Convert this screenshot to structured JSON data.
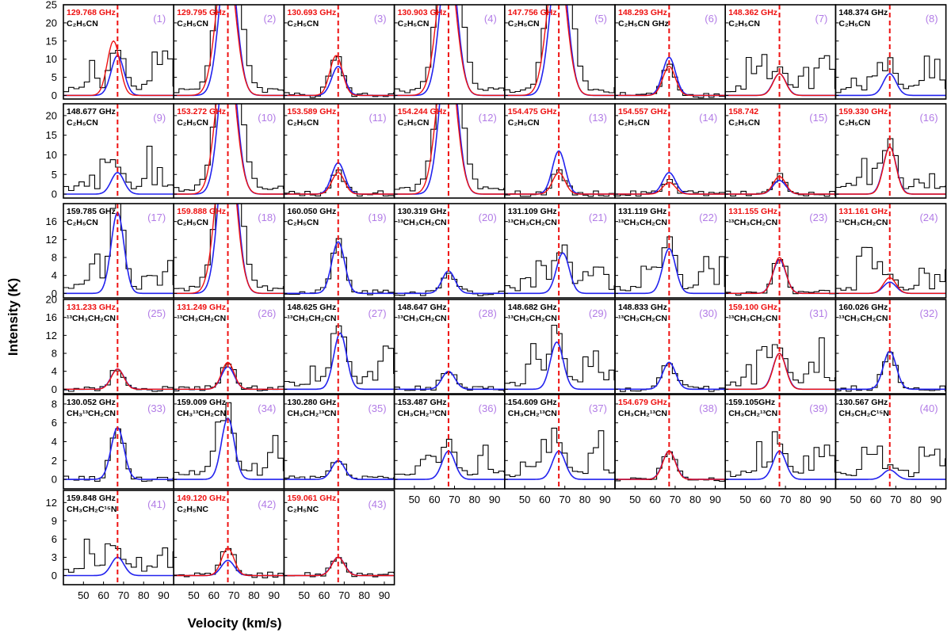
{
  "figure": {
    "xlabel": "Velocity (km/s)",
    "ylabel": "Intensity (K)",
    "xlim": [
      40,
      95
    ],
    "xticks": [
      50,
      60,
      70,
      80,
      90
    ],
    "colors": {
      "observed": "#000000",
      "model": "#2222ee",
      "fit": "#ee1111",
      "vlsr_line": "#ee1111",
      "panel_number": "#b27ce6",
      "highlight_freq": "#ee1111"
    }
  },
  "chart_data": [
    {
      "panel": "(1)",
      "freq": "129.768 GHz",
      "freq_red": true,
      "species": "C₂H₅CN",
      "row": 0,
      "col": 0,
      "obs": "blend",
      "peak_model": 11,
      "peak_fit": 15,
      "center": 67,
      "fit_center": 65
    },
    {
      "panel": "(2)",
      "freq": "129.795 GHz",
      "freq_red": true,
      "species": "C₂H₅CN",
      "row": 0,
      "col": 1,
      "obs": "broad_high",
      "peak_model": 40,
      "peak_fit": 40,
      "center": 67,
      "fit_center": 66
    },
    {
      "panel": "(3)",
      "freq": "130.693 GHz",
      "freq_red": true,
      "species": "C₂H₅CN",
      "row": 0,
      "col": 2,
      "obs": "moderate",
      "peak_model": 8,
      "peak_fit": 11,
      "center": 67,
      "fit_center": 66
    },
    {
      "panel": "(4)",
      "freq": "130.903 GHz",
      "freq_red": true,
      "species": "C₂H₅CN",
      "row": 0,
      "col": 3,
      "obs": "broad_high",
      "peak_model": 40,
      "peak_fit": 40,
      "center": 67,
      "fit_center": 66
    },
    {
      "panel": "(5)",
      "freq": "147.756 GHz",
      "freq_red": true,
      "species": "C₂H₅CN",
      "row": 0,
      "col": 4,
      "obs": "broad_high",
      "peak_model": 40,
      "peak_fit": 40,
      "center": 67,
      "fit_center": 66
    },
    {
      "panel": "(6)",
      "freq": "148.293 GHz",
      "freq_red": true,
      "species": "C₂H₅CN GHz",
      "row": 0,
      "col": 5,
      "obs": "moderate",
      "peak_model": 10.5,
      "peak_fit": 8,
      "center": 67,
      "fit_center": 67
    },
    {
      "panel": "(7)",
      "freq": "148.362 GHz",
      "freq_red": true,
      "species": "C₂H₅CN",
      "row": 0,
      "col": 6,
      "obs": "blend",
      "peak_model": 6,
      "peak_fit": 6,
      "center": 67,
      "fit_center": 67
    },
    {
      "panel": "(8)",
      "freq": "148.374 GHz",
      "freq_red": false,
      "species": "C₂H₅CN",
      "row": 0,
      "col": 7,
      "obs": "blend",
      "peak_model": 6,
      "peak_fit": null,
      "center": 67,
      "fit_center": null
    },
    {
      "panel": "(9)",
      "freq": "148.677 GHz",
      "freq_red": false,
      "species": "C₂H₅CN",
      "row": 1,
      "col": 0,
      "obs": "blend",
      "peak_model": 5.5,
      "peak_fit": null,
      "center": 67,
      "fit_center": null
    },
    {
      "panel": "(10)",
      "freq": "153.272 GHz",
      "freq_red": true,
      "species": "C₂H₅CN",
      "row": 1,
      "col": 1,
      "obs": "broad_high",
      "peak_model": 40,
      "peak_fit": 40,
      "center": 67,
      "fit_center": 66
    },
    {
      "panel": "(11)",
      "freq": "153.589 GHz",
      "freq_red": true,
      "species": "C₂H₅CN",
      "row": 1,
      "col": 2,
      "obs": "moderate",
      "peak_model": 8,
      "peak_fit": 5.5,
      "center": 67,
      "fit_center": 67
    },
    {
      "panel": "(12)",
      "freq": "154.244 GHz",
      "freq_red": true,
      "species": "C₂H₅CN",
      "row": 1,
      "col": 3,
      "obs": "broad_high",
      "peak_model": 40,
      "peak_fit": 40,
      "center": 67,
      "fit_center": 66
    },
    {
      "panel": "(13)",
      "freq": "154.475 GHz",
      "freq_red": true,
      "species": "C₂H₅CN",
      "row": 1,
      "col": 4,
      "obs": "moderate",
      "peak_model": 11,
      "peak_fit": 5.5,
      "center": 67,
      "fit_center": 67
    },
    {
      "panel": "(14)",
      "freq": "154.557 GHz",
      "freq_red": true,
      "species": "C₂H₅CN",
      "row": 1,
      "col": 5,
      "obs": "moderate",
      "peak_model": 5.5,
      "peak_fit": 3,
      "center": 67,
      "fit_center": 67
    },
    {
      "panel": "(15)",
      "freq": "158.742",
      "freq_red": true,
      "species": "C₂H₅CN",
      "row": 1,
      "col": 6,
      "obs": "moderate",
      "peak_model": 3.5,
      "peak_fit": 4.5,
      "center": 67,
      "fit_center": 67
    },
    {
      "panel": "(16)",
      "freq": "159.330 GHz",
      "freq_red": true,
      "species": "C₂H₅CN",
      "row": 1,
      "col": 7,
      "obs": "blend",
      "peak_model": 12,
      "peak_fit": 12,
      "center": 67,
      "fit_center": 67
    },
    {
      "panel": "(17)",
      "freq": "159.785 GHz",
      "freq_red": false,
      "species": "C₂H₅CN",
      "row": 2,
      "col": 0,
      "obs": "blend",
      "peak_model": 18,
      "peak_fit": null,
      "center": 67,
      "fit_center": null
    },
    {
      "panel": "(18)",
      "freq": "159.888 GHz",
      "freq_red": true,
      "species": "C₂H₅CN",
      "row": 2,
      "col": 1,
      "obs": "broad_high",
      "peak_model": 40,
      "peak_fit": 40,
      "center": 67,
      "fit_center": 66
    },
    {
      "panel": "(19)",
      "freq": "160.050 GHz",
      "freq_red": false,
      "species": "C₂H₅CN",
      "row": 2,
      "col": 2,
      "obs": "moderate",
      "peak_model": 11.5,
      "peak_fit": null,
      "center": 67,
      "fit_center": null
    },
    {
      "panel": "(20)",
      "freq": "130.319 GHz",
      "freq_red": false,
      "species": "¹³CH₃CH₂CN",
      "row": 2,
      "col": 3,
      "obs": "moderate",
      "peak_model": 5,
      "peak_fit": null,
      "center": 67,
      "fit_center": null
    },
    {
      "panel": "(21)",
      "freq": "131.109 GHz",
      "freq_red": false,
      "species": "¹³CH₃CH₂CN",
      "row": 2,
      "col": 4,
      "obs": "blend",
      "peak_model": 9,
      "peak_fit": null,
      "center": 69,
      "fit_center": null
    },
    {
      "panel": "(22)",
      "freq": "131.119 GHz",
      "freq_red": false,
      "species": "¹³CH₃CH₂CN",
      "row": 2,
      "col": 5,
      "obs": "blend",
      "peak_model": 10,
      "peak_fit": null,
      "center": 67,
      "fit_center": null
    },
    {
      "panel": "(23)",
      "freq": "131.155 GHz",
      "freq_red": true,
      "species": "¹³CH₃CH₂CN",
      "row": 2,
      "col": 6,
      "obs": "moderate",
      "peak_model": 7.5,
      "peak_fit": 8,
      "center": 67,
      "fit_center": 67
    },
    {
      "panel": "(24)",
      "freq": "131.161  GHz",
      "freq_red": true,
      "species": "¹³CH₃CH₂CN",
      "row": 2,
      "col": 7,
      "obs": "blend",
      "peak_model": 2.5,
      "peak_fit": 3.5,
      "center": 67,
      "fit_center": 67
    },
    {
      "panel": "(25)",
      "freq": "131.233 GHz",
      "freq_red": true,
      "species": "¹³CH₃CH₂CN",
      "row": 3,
      "col": 0,
      "obs": "moderate",
      "peak_model": 4.5,
      "peak_fit": 4.5,
      "center": 67,
      "fit_center": 67
    },
    {
      "panel": "(26)",
      "freq": "131.249 GHz",
      "freq_red": true,
      "species": "¹³CH₃CH₂CN",
      "row": 3,
      "col": 1,
      "obs": "moderate",
      "peak_model": 5,
      "peak_fit": 6,
      "center": 67,
      "fit_center": 67
    },
    {
      "panel": "(27)",
      "freq": "148.625 GHz",
      "freq_red": false,
      "species": "¹³CH₃CH₂CN",
      "row": 3,
      "col": 2,
      "obs": "blend",
      "peak_model": 12.5,
      "peak_fit": null,
      "center": 68,
      "fit_center": null
    },
    {
      "panel": "(28)",
      "freq": "148.647 GHz",
      "freq_red": false,
      "species": "¹³CH₃CH₂CN",
      "row": 3,
      "col": 3,
      "obs": "moderate",
      "peak_model": 4,
      "peak_fit": null,
      "center": 67,
      "fit_center": null
    },
    {
      "panel": "(29)",
      "freq": "148.682  GHz",
      "freq_red": false,
      "species": "¹³CH₃CH₂CN",
      "row": 3,
      "col": 4,
      "obs": "blend",
      "peak_model": 10.5,
      "peak_fit": null,
      "center": 66,
      "fit_center": null
    },
    {
      "panel": "(30)",
      "freq": "148.833 GHz",
      "freq_red": false,
      "species": "¹³CH₃CH₂CN",
      "row": 3,
      "col": 5,
      "obs": "moderate",
      "peak_model": 6,
      "peak_fit": null,
      "center": 67,
      "fit_center": null
    },
    {
      "panel": "(31)",
      "freq": "159.100 GHz",
      "freq_red": true,
      "species": "¹³CH₃CH₂CN",
      "row": 3,
      "col": 6,
      "obs": "blend",
      "peak_model": 8,
      "peak_fit": 8,
      "center": 67,
      "fit_center": 67
    },
    {
      "panel": "(32)",
      "freq": "160.026 GHz",
      "freq_red": false,
      "species": "¹³CH₃CH₂CN",
      "row": 3,
      "col": 7,
      "obs": "moderate",
      "peak_model": 8.5,
      "peak_fit": null,
      "center": 67,
      "fit_center": null
    },
    {
      "panel": "(33)",
      "freq": "130.052 GHz",
      "freq_red": false,
      "species": "CH₃¹³CH₂CN",
      "row": 4,
      "col": 0,
      "obs": "moderate",
      "peak_model": 5.5,
      "peak_fit": null,
      "center": 67,
      "fit_center": null
    },
    {
      "panel": "(34)",
      "freq": "159.009 GHz",
      "freq_red": false,
      "species": "CH₃¹³CH₂CN",
      "row": 4,
      "col": 1,
      "obs": "blend",
      "peak_model": 6.5,
      "peak_fit": null,
      "center": 67,
      "fit_center": null
    },
    {
      "panel": "(35)",
      "freq": "130.280 GHz",
      "freq_red": false,
      "species": "CH₃CH₂¹³CN",
      "row": 4,
      "col": 2,
      "obs": "moderate",
      "peak_model": 2,
      "peak_fit": null,
      "center": 67,
      "fit_center": null
    },
    {
      "panel": "(36)",
      "freq": "153.487 GHz",
      "freq_red": false,
      "species": "CH₃CH₂¹³CN",
      "row": 4,
      "col": 3,
      "obs": "blend",
      "peak_model": 3,
      "peak_fit": null,
      "center": 67,
      "fit_center": null
    },
    {
      "panel": "(37)",
      "freq": "154.609 GHz",
      "freq_red": false,
      "species": "CH₃CH₂¹³CN",
      "row": 4,
      "col": 4,
      "obs": "blend",
      "peak_model": 3,
      "peak_fit": null,
      "center": 67,
      "fit_center": null
    },
    {
      "panel": "(38)",
      "freq": "154.679 GHz",
      "freq_red": true,
      "species": "CH₃CH₂¹³CN",
      "row": 4,
      "col": 5,
      "obs": "moderate",
      "peak_model": 3,
      "peak_fit": 3,
      "center": 67,
      "fit_center": 67
    },
    {
      "panel": "(39)",
      "freq": "159.105GHz",
      "freq_red": false,
      "species": "CH₃CH₂¹³CN",
      "row": 4,
      "col": 6,
      "obs": "blend",
      "peak_model": 3,
      "peak_fit": null,
      "center": 67,
      "fit_center": null
    },
    {
      "panel": "(40)",
      "freq": "130.567 GHz",
      "freq_red": false,
      "species": "CH₃CH₂C¹⁵N",
      "row": 4,
      "col": 7,
      "obs": "blend",
      "peak_model": 1,
      "peak_fit": null,
      "center": 67,
      "fit_center": null
    },
    {
      "panel": "(41)",
      "freq": "159.848 GHz",
      "freq_red": false,
      "species": "CH₃CH₂C¹⁵N",
      "row": 5,
      "col": 0,
      "obs": "blend",
      "peak_model": 3,
      "peak_fit": null,
      "center": 67,
      "fit_center": null
    },
    {
      "panel": "(42)",
      "freq": "149.120 GHz",
      "freq_red": true,
      "species": "C₂H₅NC",
      "row": 5,
      "col": 1,
      "obs": "moderate",
      "peak_model": 2.5,
      "peak_fit": 4.5,
      "center": 67,
      "fit_center": 67
    },
    {
      "panel": "(43)",
      "freq": "159.061 GHz",
      "freq_red": true,
      "species": "C₂H₅NC",
      "row": 5,
      "col": 2,
      "obs": "moderate",
      "peak_model": 3,
      "peak_fit": 3,
      "center": 67,
      "fit_center": 67
    }
  ],
  "rows": [
    {
      "yticks": [
        0,
        5,
        10,
        15,
        20,
        25
      ],
      "ylim": [
        -1,
        25
      ]
    },
    {
      "yticks": [
        0,
        5,
        10,
        15,
        20
      ],
      "ylim": [
        -1,
        23
      ]
    },
    {
      "yticks": [
        0,
        4,
        8,
        12,
        16
      ],
      "ylim": [
        -1,
        20
      ]
    },
    {
      "yticks": [
        0,
        4,
        8,
        12,
        16,
        20
      ],
      "ylim": [
        -1,
        20
      ]
    },
    {
      "yticks": [
        0,
        2,
        4,
        6,
        8
      ],
      "ylim": [
        -1,
        9
      ]
    },
    {
      "yticks": [
        0,
        3,
        6,
        9,
        12
      ],
      "ylim": [
        -1.5,
        14
      ]
    }
  ]
}
